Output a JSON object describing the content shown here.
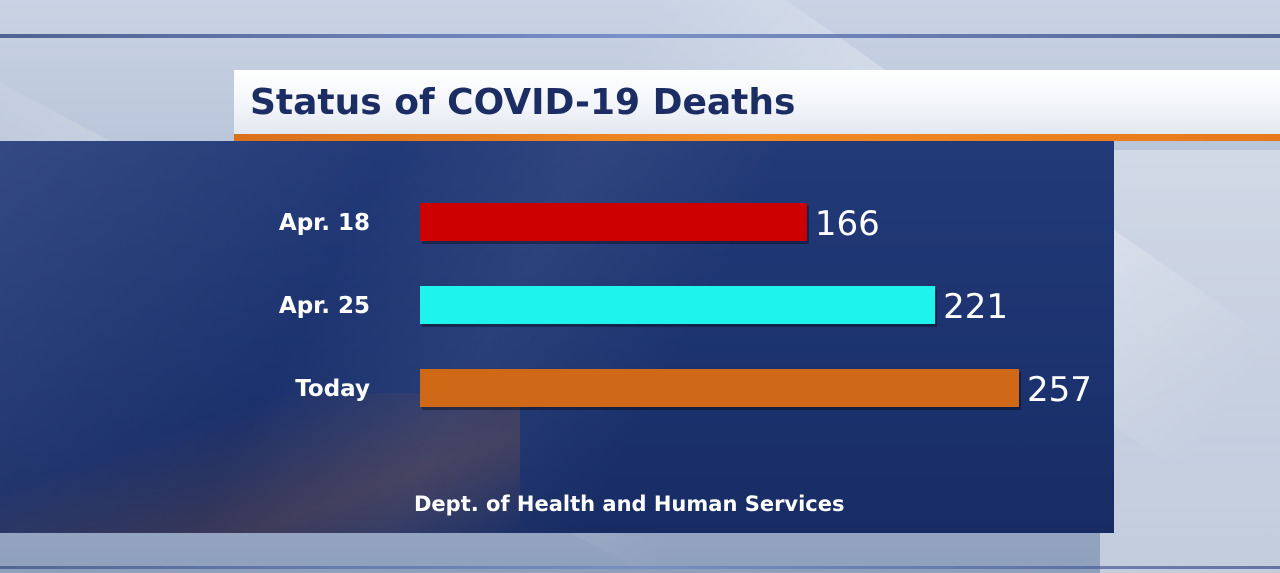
{
  "header": {
    "title": "Status of COVID-19 Deaths"
  },
  "chart_data": {
    "type": "bar",
    "orientation": "horizontal",
    "categories": [
      "Apr. 18",
      "Apr. 25",
      "Today"
    ],
    "values": [
      166,
      221,
      257
    ],
    "data_labels": [
      "166",
      "221",
      "257"
    ],
    "colors": [
      "#cc0000",
      "#1ff3ee",
      "#cf6817"
    ],
    "title": "Status of COVID-19 Deaths",
    "xlabel": "",
    "ylabel": "",
    "xlim": [
      0,
      257
    ],
    "grid": false,
    "legend": "none"
  },
  "footer": {
    "source": "Dept. of Health and Human Services"
  }
}
